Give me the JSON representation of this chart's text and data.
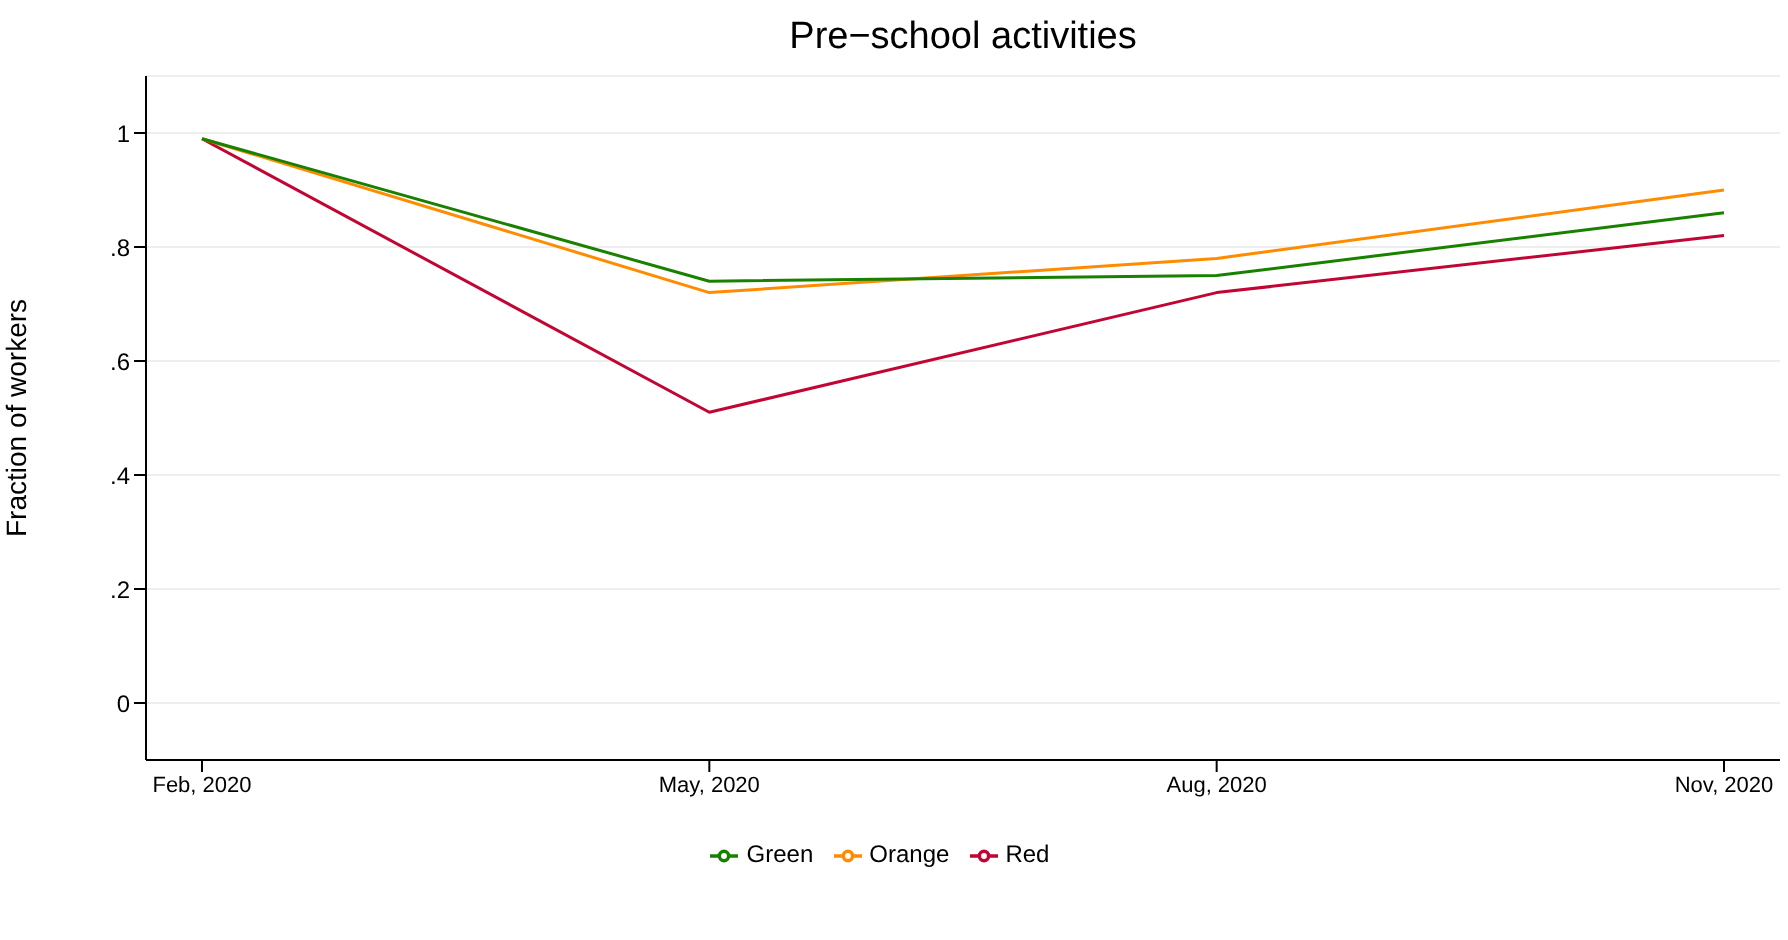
{
  "chart_data": {
    "type": "line",
    "title": "Pre−school activities",
    "ylabel": "Fraction of workers",
    "categories": [
      "Feb, 2020",
      "May, 2020",
      "Aug, 2020",
      "Nov, 2020"
    ],
    "series": [
      {
        "name": "Red",
        "color": "#c10534",
        "values": [
          0.99,
          0.51,
          0.72,
          0.82
        ]
      },
      {
        "name": "Orange",
        "color": "#ff8c00",
        "values": [
          0.99,
          0.72,
          0.78,
          0.9
        ]
      },
      {
        "name": "Green",
        "color": "#1a8100",
        "values": [
          0.99,
          0.74,
          0.75,
          0.86
        ]
      }
    ],
    "ylim": [
      -0.1,
      1.1
    ],
    "yticks": [
      {
        "value": 0,
        "label": "0"
      },
      {
        "value": 0.2,
        "label": ".2"
      },
      {
        "value": 0.4,
        "label": ".4"
      },
      {
        "value": 0.6,
        "label": ".6"
      },
      {
        "value": 0.8,
        "label": ".8"
      },
      {
        "value": 1,
        "label": "1"
      }
    ],
    "grid": "y",
    "legend": "bottom",
    "marker": "none",
    "line_style": "solid"
  }
}
